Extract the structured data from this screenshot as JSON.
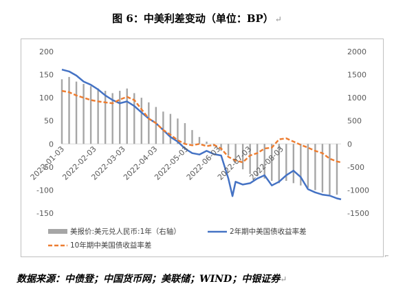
{
  "figure": {
    "title": "图 6：中美利差变动（单位：BP）",
    "return_mark": "↵",
    "source": "数据来源：中债登；中国货币网；美联储；WIND；中银证券"
  },
  "chart_data": {
    "type": "bar+line",
    "title": "",
    "left_axis": {
      "ylim": [
        -150,
        200
      ],
      "ticks": [
        -150,
        -100,
        -50,
        0,
        50,
        100,
        150,
        200
      ],
      "tick_labels": [
        "-150",
        "-100",
        "-50",
        "0",
        "50",
        "100",
        "150",
        "200"
      ]
    },
    "right_axis": {
      "ylim": [
        -1500,
        2000
      ],
      "ticks": [
        -1500,
        -1000,
        -500,
        0,
        500,
        1000,
        1500,
        2000
      ],
      "tick_labels": [
        "-1500",
        "-1000",
        "-500",
        "0",
        "500",
        "1000",
        "1500",
        "2000"
      ]
    },
    "x_axis": {
      "start": "2022-01-03",
      "end": "2022-09-30",
      "tick_labels": [
        "2022-01-03",
        "2022-02-03",
        "2022-03-03",
        "2022-04-03",
        "2022-05-03",
        "2022-06-03",
        "2022-07-03",
        "2022-08-03"
      ]
    },
    "legend": [
      "美报价:美元兑人民币:1年（右轴）",
      "2年期中美国债收益率差",
      "10年期中美国债收益率差"
    ],
    "legend_position": "bottom",
    "series": [
      {
        "name": "美报价:美元兑人民币:1年（右轴）",
        "kind": "bar",
        "axis": "right",
        "color": "#a6a6a6",
        "points": [
          [
            "2022-01-03",
            1400
          ],
          [
            "2022-01-10",
            1450
          ],
          [
            "2022-01-17",
            1350
          ],
          [
            "2022-01-24",
            1300
          ],
          [
            "2022-01-31",
            1250
          ],
          [
            "2022-02-07",
            1200
          ],
          [
            "2022-02-14",
            1150
          ],
          [
            "2022-02-21",
            1100
          ],
          [
            "2022-02-28",
            1150
          ],
          [
            "2022-03-07",
            1200
          ],
          [
            "2022-03-14",
            1100
          ],
          [
            "2022-03-21",
            1000
          ],
          [
            "2022-03-28",
            900
          ],
          [
            "2022-04-04",
            800
          ],
          [
            "2022-04-11",
            700
          ],
          [
            "2022-04-18",
            650
          ],
          [
            "2022-04-25",
            550
          ],
          [
            "2022-05-02",
            450
          ],
          [
            "2022-05-09",
            300
          ],
          [
            "2022-05-16",
            150
          ],
          [
            "2022-05-23",
            50
          ],
          [
            "2022-05-30",
            -50
          ],
          [
            "2022-06-06",
            -150
          ],
          [
            "2022-06-13",
            -250
          ],
          [
            "2022-06-20",
            -400
          ],
          [
            "2022-06-27",
            -550
          ],
          [
            "2022-07-04",
            -650
          ],
          [
            "2022-07-11",
            -700
          ],
          [
            "2022-07-18",
            -750
          ],
          [
            "2022-07-25",
            -800
          ],
          [
            "2022-08-01",
            -850
          ],
          [
            "2022-08-08",
            -800
          ],
          [
            "2022-08-15",
            -850
          ],
          [
            "2022-08-22",
            -900
          ],
          [
            "2022-08-29",
            -950
          ],
          [
            "2022-09-05",
            -1000
          ],
          [
            "2022-09-12",
            -1050
          ],
          [
            "2022-09-19",
            -1100
          ],
          [
            "2022-09-26",
            -1100
          ]
        ]
      },
      {
        "name": "2年期中美国债收益率差",
        "kind": "line",
        "axis": "left",
        "color": "#4472c4",
        "points": [
          [
            "2022-01-03",
            161
          ],
          [
            "2022-01-10",
            157
          ],
          [
            "2022-01-17",
            148
          ],
          [
            "2022-01-24",
            135
          ],
          [
            "2022-01-31",
            128
          ],
          [
            "2022-02-07",
            118
          ],
          [
            "2022-02-14",
            105
          ],
          [
            "2022-02-21",
            95
          ],
          [
            "2022-02-28",
            88
          ],
          [
            "2022-03-07",
            92
          ],
          [
            "2022-03-14",
            82
          ],
          [
            "2022-03-21",
            68
          ],
          [
            "2022-03-28",
            55
          ],
          [
            "2022-04-04",
            45
          ],
          [
            "2022-04-11",
            30
          ],
          [
            "2022-04-18",
            15
          ],
          [
            "2022-04-25",
            5
          ],
          [
            "2022-05-02",
            -10
          ],
          [
            "2022-05-09",
            -20
          ],
          [
            "2022-05-16",
            -23
          ],
          [
            "2022-05-23",
            -15
          ],
          [
            "2022-05-30",
            -22
          ],
          [
            "2022-06-06",
            -25
          ],
          [
            "2022-06-13",
            -75
          ],
          [
            "2022-06-17",
            -113
          ],
          [
            "2022-06-20",
            -82
          ],
          [
            "2022-06-27",
            -88
          ],
          [
            "2022-07-04",
            -85
          ],
          [
            "2022-07-11",
            -75
          ],
          [
            "2022-07-18",
            -68
          ],
          [
            "2022-07-25",
            -90
          ],
          [
            "2022-08-01",
            -82
          ],
          [
            "2022-08-08",
            -68
          ],
          [
            "2022-08-15",
            -58
          ],
          [
            "2022-08-22",
            -72
          ],
          [
            "2022-08-29",
            -98
          ],
          [
            "2022-09-05",
            -105
          ],
          [
            "2022-09-12",
            -110
          ],
          [
            "2022-09-19",
            -112
          ],
          [
            "2022-09-26",
            -118
          ],
          [
            "2022-09-30",
            -120
          ]
        ]
      },
      {
        "name": "10年期中美国债收益率差",
        "kind": "line",
        "axis": "left",
        "color": "#ed7d31",
        "dash": true,
        "points": [
          [
            "2022-01-03",
            115
          ],
          [
            "2022-01-10",
            112
          ],
          [
            "2022-01-17",
            105
          ],
          [
            "2022-01-24",
            100
          ],
          [
            "2022-01-31",
            95
          ],
          [
            "2022-02-07",
            92
          ],
          [
            "2022-02-14",
            90
          ],
          [
            "2022-02-21",
            88
          ],
          [
            "2022-02-28",
            96
          ],
          [
            "2022-03-07",
            102
          ],
          [
            "2022-03-14",
            95
          ],
          [
            "2022-03-21",
            75
          ],
          [
            "2022-03-28",
            55
          ],
          [
            "2022-04-04",
            45
          ],
          [
            "2022-04-11",
            30
          ],
          [
            "2022-04-18",
            20
          ],
          [
            "2022-04-25",
            8
          ],
          [
            "2022-05-02",
            0
          ],
          [
            "2022-05-09",
            -3
          ],
          [
            "2022-05-16",
            0
          ],
          [
            "2022-05-23",
            -5
          ],
          [
            "2022-05-30",
            -2
          ],
          [
            "2022-06-06",
            -10
          ],
          [
            "2022-06-13",
            -28
          ],
          [
            "2022-06-20",
            -36
          ],
          [
            "2022-06-27",
            -40
          ],
          [
            "2022-07-04",
            -25
          ],
          [
            "2022-07-11",
            -20
          ],
          [
            "2022-07-18",
            -10
          ],
          [
            "2022-07-25",
            -8
          ],
          [
            "2022-08-01",
            10
          ],
          [
            "2022-08-08",
            12
          ],
          [
            "2022-08-15",
            5
          ],
          [
            "2022-08-22",
            -2
          ],
          [
            "2022-08-29",
            -8
          ],
          [
            "2022-09-05",
            -15
          ],
          [
            "2022-09-12",
            -20
          ],
          [
            "2022-09-19",
            -32
          ],
          [
            "2022-09-26",
            -38
          ],
          [
            "2022-09-30",
            -40
          ]
        ]
      }
    ]
  }
}
